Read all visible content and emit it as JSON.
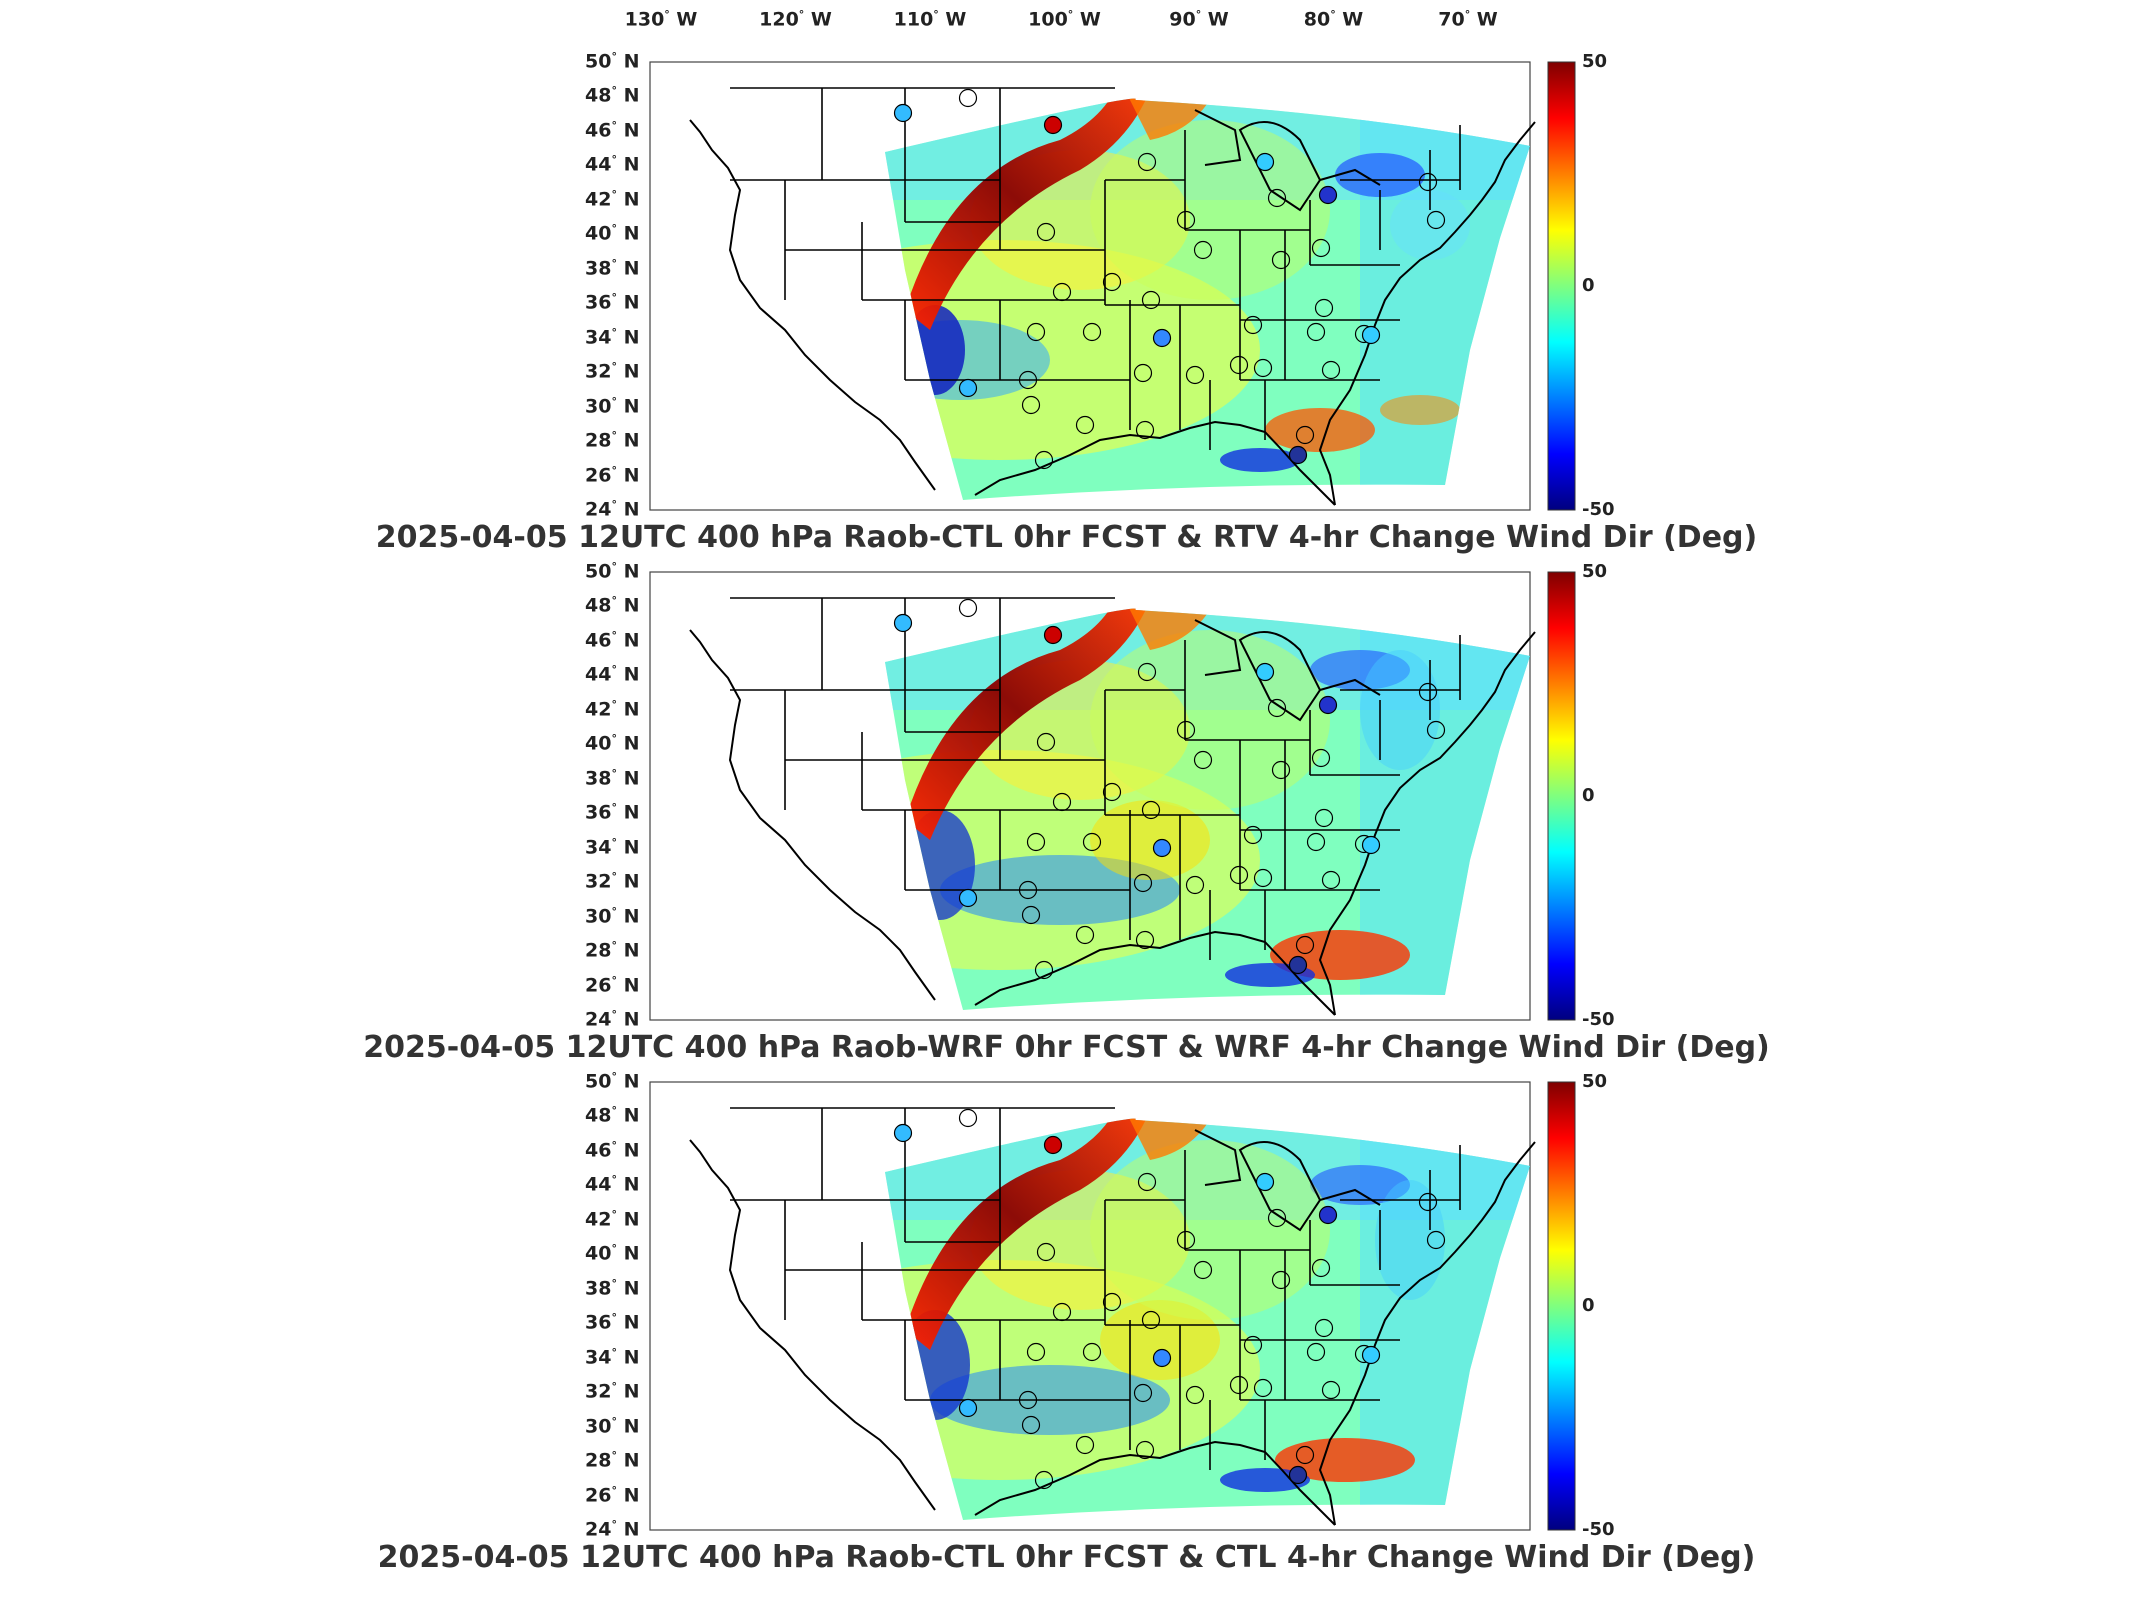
{
  "lon_labels": [
    {
      "text": "130 W",
      "lon": -130
    },
    {
      "text": "120 W",
      "lon": -120
    },
    {
      "text": "110 W",
      "lon": -110
    },
    {
      "text": "100 W",
      "lon": -100
    },
    {
      "text": "90 W",
      "lon": -90
    },
    {
      "text": "80 W",
      "lon": -80
    },
    {
      "text": "70 W",
      "lon": -70
    }
  ],
  "lat_labels": [
    "50 N",
    "48 N",
    "46 N",
    "44 N",
    "42 N",
    "40 N",
    "38 N",
    "36 N",
    "34 N",
    "32 N",
    "30 N",
    "28 N",
    "26 N",
    "24 N"
  ],
  "colorbar": {
    "max_label": "50",
    "mid_label": "0",
    "min_label": "-50",
    "colors": [
      "#00007f",
      "#0000ff",
      "#007fff",
      "#00ffff",
      "#7fff7f",
      "#ffff00",
      "#ff7f00",
      "#ff0000",
      "#7f0000"
    ]
  },
  "panels": [
    {
      "title": "2025-04-05 12UTC 400 hPa Raob-CTL 0hr FCST & RTV 4-hr Change Wind Dir (Deg)"
    },
    {
      "title": "2025-04-05 12UTC 400 hPa Raob-WRF 0hr FCST & WRF 4-hr Change Wind Dir (Deg)"
    },
    {
      "title": "2025-04-05 12UTC 400 hPa Raob-CTL 0hr FCST & CTL 4-hr Change Wind Dir (Deg)"
    }
  ]
}
